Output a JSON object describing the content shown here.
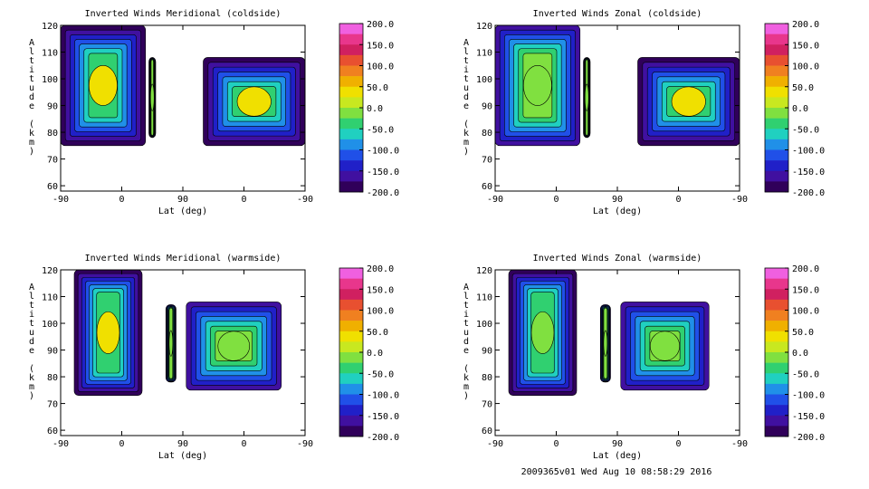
{
  "footer": "2009365v01 Wed Aug 10 08:58:29 2016",
  "colorbar": {
    "ticks": [
      "200.0",
      "150.0",
      "100.0",
      "50.0",
      "0.0",
      "-50.0",
      "-100.0",
      "-150.0",
      "-200.0"
    ],
    "colors": [
      "#f060e0",
      "#e8368c",
      "#d02060",
      "#e85030",
      "#f08020",
      "#f0b000",
      "#f0e000",
      "#c8e820",
      "#80e040",
      "#30d070",
      "#20d0c0",
      "#2090e8",
      "#2050e8",
      "#2020c8",
      "#4010a0",
      "#30005a"
    ]
  },
  "chart_data": [
    {
      "type": "heatmap",
      "title": "Inverted Winds Meridional (coldside)",
      "xlabel": "Lat (deg)",
      "ylabel": "Altitude (km)",
      "xticks": [
        "-90",
        "0",
        "90",
        "0",
        "-90"
      ],
      "yticks": [
        "60",
        "70",
        "80",
        "90",
        "100",
        "110",
        "120"
      ],
      "ylim": [
        58,
        120
      ],
      "value_range": [
        -200,
        200
      ],
      "blocks": [
        {
          "lat_range": [
            -90,
            35
          ],
          "alt_range": [
            75,
            120
          ],
          "level": 0.55
        },
        {
          "lat_range": [
            40,
            50
          ],
          "alt_range": [
            78,
            108
          ],
          "level": 0.45
        },
        {
          "lat_range": [
            120,
            270
          ],
          "alt_range": [
            75,
            108
          ],
          "level": 0.62
        }
      ]
    },
    {
      "type": "heatmap",
      "title": "Inverted Winds Zonal (coldside)",
      "xlabel": "Lat (deg)",
      "ylabel": "Altitude (km)",
      "xticks": [
        "-90",
        "0",
        "90",
        "0",
        "-90"
      ],
      "yticks": [
        "60",
        "70",
        "80",
        "90",
        "100",
        "110",
        "120"
      ],
      "ylim": [
        58,
        120
      ],
      "value_range": [
        -200,
        200
      ],
      "blocks": [
        {
          "lat_range": [
            -90,
            35
          ],
          "alt_range": [
            75,
            120
          ],
          "level": 0.45
        },
        {
          "lat_range": [
            40,
            50
          ],
          "alt_range": [
            78,
            108
          ],
          "level": 0.4
        },
        {
          "lat_range": [
            120,
            270
          ],
          "alt_range": [
            75,
            108
          ],
          "level": 0.55
        }
      ]
    },
    {
      "type": "heatmap",
      "title": "Inverted Winds Meridional (warmside)",
      "xlabel": "Lat (deg)",
      "ylabel": "Altitude (km)",
      "xticks": [
        "-90",
        "0",
        "90",
        "0",
        "-90"
      ],
      "yticks": [
        "60",
        "70",
        "80",
        "90",
        "100",
        "110",
        "120"
      ],
      "ylim": [
        58,
        120
      ],
      "value_range": [
        -200,
        200
      ],
      "blocks": [
        {
          "lat_range": [
            -70,
            30
          ],
          "alt_range": [
            73,
            120
          ],
          "level": 0.55
        },
        {
          "lat_range": [
            65,
            80
          ],
          "alt_range": [
            78,
            107
          ],
          "level": 0.3
        },
        {
          "lat_range": [
            95,
            235
          ],
          "alt_range": [
            75,
            108
          ],
          "level": 0.4
        }
      ]
    },
    {
      "type": "heatmap",
      "title": "Inverted Winds Zonal (warmside)",
      "xlabel": "Lat (deg)",
      "ylabel": "Altitude (km)",
      "xticks": [
        "-90",
        "0",
        "90",
        "0",
        "-90"
      ],
      "yticks": [
        "60",
        "70",
        "80",
        "90",
        "100",
        "110",
        "120"
      ],
      "ylim": [
        58,
        120
      ],
      "value_range": [
        -200,
        200
      ],
      "blocks": [
        {
          "lat_range": [
            -70,
            30
          ],
          "alt_range": [
            73,
            120
          ],
          "level": 0.5
        },
        {
          "lat_range": [
            65,
            80
          ],
          "alt_range": [
            78,
            107
          ],
          "level": 0.3
        },
        {
          "lat_range": [
            95,
            225
          ],
          "alt_range": [
            75,
            108
          ],
          "level": 0.45
        }
      ]
    }
  ]
}
